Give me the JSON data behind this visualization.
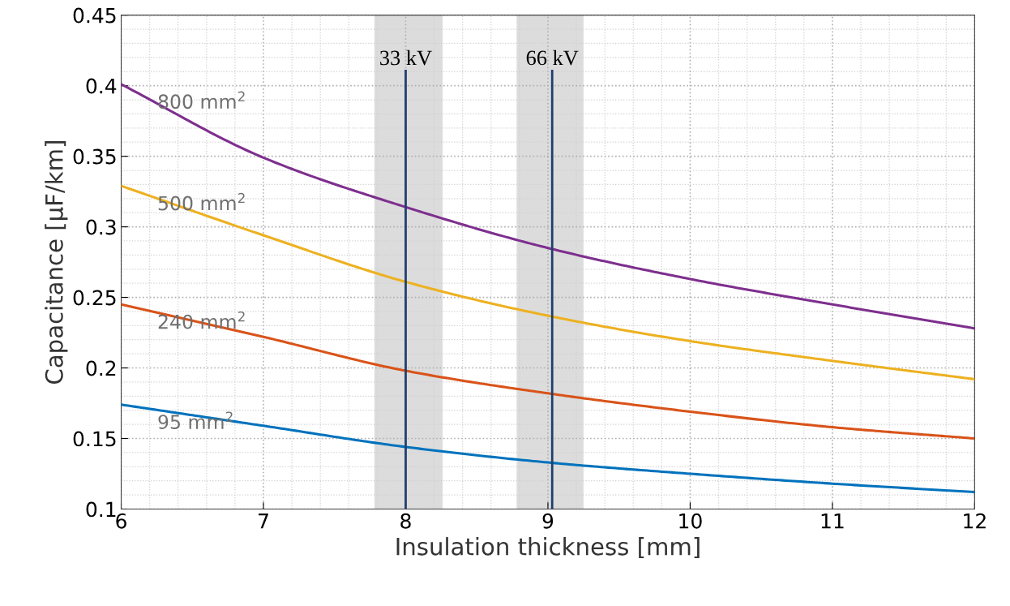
{
  "chart_data": {
    "type": "line",
    "xlabel": "Insulation thickness [mm]",
    "ylabel": "Capacitance [μF/km]",
    "x": [
      6,
      7,
      8,
      9,
      10,
      11,
      12
    ],
    "series": [
      {
        "name": "800 mm$^{2}$",
        "color": "#7e2f8e",
        "values": [
          0.401,
          0.349,
          0.314,
          0.285,
          0.263,
          0.245,
          0.228
        ]
      },
      {
        "name": "500 mm$^{2}$",
        "color": "#edb120",
        "values": [
          0.329,
          0.294,
          0.261,
          0.237,
          0.219,
          0.205,
          0.192
        ]
      },
      {
        "name": "240 mm$^{2}$",
        "color": "#d95319",
        "values": [
          0.245,
          0.222,
          0.198,
          0.182,
          0.169,
          0.158,
          0.15
        ]
      },
      {
        "name": "95 mm$^{2}$",
        "color": "#0072bd",
        "values": [
          0.174,
          0.159,
          0.144,
          0.133,
          0.125,
          0.118,
          0.112
        ]
      }
    ],
    "xlim": [
      6,
      12
    ],
    "ylim": [
      0.1,
      0.45
    ],
    "xticks": [
      6,
      7,
      8,
      9,
      10,
      11,
      12
    ],
    "yticks": [
      0.1,
      0.15,
      0.2,
      0.25,
      0.3,
      0.35,
      0.4,
      0.45
    ],
    "grid": true,
    "marker": "none",
    "line_style": "solid",
    "ref_lines": [
      {
        "axis": "x",
        "value": 8,
        "label": "33 kV",
        "color": "#1f3f6f"
      },
      {
        "axis": "x",
        "value": 9.03,
        "label": "66 kV",
        "color": "#1f3f6f"
      }
    ],
    "bands": [
      {
        "axis": "x",
        "from": 7.78,
        "to": 8.26,
        "color": "#dcdcdc"
      },
      {
        "axis": "x",
        "from": 8.78,
        "to": 9.25,
        "color": "#dcdcdc"
      }
    ]
  }
}
